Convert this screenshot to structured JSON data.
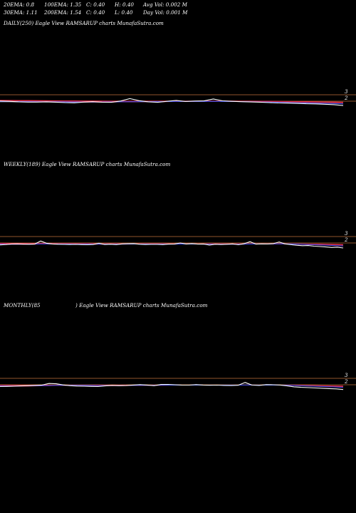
{
  "header": {
    "row1": [
      "20EMA: 0.8",
      "100EMA: 1.35",
      "C: 0.40",
      "H: 0.40",
      "Avg Vol: 0.002  M"
    ],
    "row2": [
      "30EMA: 1.11",
      "200EMA: 1.54",
      "C: 0.40",
      "L: 0.40",
      "Day Vol: 0.001 M"
    ]
  },
  "panels": [
    {
      "label": "DAILY(250) Eagle   View  RAMSARUP charts MunafaSutra.com"
    },
    {
      "label": "WEEKLY(189) Eagle   View  RAMSARUP charts MunafaSutra.com"
    },
    {
      "label": "MONTHLY(85",
      "label2": ") Eagle   View  RAMSARUP charts MunafaSutra.com"
    }
  ],
  "colors": {
    "background": "#000000",
    "price": "#ffffff",
    "level": "#c2703a",
    "ema_red": "#e8304a",
    "ema_blue": "#2a4bf0",
    "ema_white": "#d8d8f0"
  },
  "chart_data": [
    {
      "type": "line",
      "title": "DAILY(250) Eagle   View  RAMSARUP charts MunafaSutra.com",
      "y_ticks": [
        3,
        2
      ],
      "levels": [
        3,
        2
      ],
      "ylim": [
        0.6,
        3.6
      ],
      "x_count": 24,
      "series": [
        {
          "values": [
            2.02,
            1.98,
            1.9,
            1.86,
            1.85,
            1.9,
            1.84,
            1.78,
            1.74,
            1.86,
            1.92,
            1.84,
            1.82,
            2.02,
            2.4,
            2.08,
            1.9,
            1.82,
            1.98,
            2.12,
            1.96,
            2.02,
            2.04,
            2.34,
            2.06,
            1.98,
            1.92,
            1.88,
            1.84,
            1.78,
            1.72,
            1.7,
            1.66,
            1.6,
            1.58,
            1.52,
            1.45,
            1.32
          ]
        },
        {
          "values": [
            1.96,
            1.95,
            1.94,
            1.93,
            1.92,
            1.91,
            1.9,
            1.89,
            1.88,
            1.88,
            1.88,
            1.88,
            1.89,
            1.9,
            1.92,
            1.93,
            1.93,
            1.93,
            1.94,
            1.95,
            1.95,
            1.96,
            1.96,
            1.97,
            1.96,
            1.95,
            1.93,
            1.91,
            1.88,
            1.85,
            1.82,
            1.79,
            1.76,
            1.73,
            1.7,
            1.67,
            1.64,
            1.6
          ]
        },
        {
          "values": [
            2.02,
            2.01,
            1.99,
            1.97,
            1.95,
            1.93,
            1.91,
            1.89,
            1.87,
            1.86,
            1.86,
            1.86,
            1.87,
            1.88,
            1.9,
            1.91,
            1.91,
            1.91,
            1.92,
            1.93,
            1.94,
            1.95,
            1.96,
            1.98,
            1.98,
            1.97,
            1.96,
            1.94,
            1.92,
            1.9,
            1.87,
            1.84,
            1.81,
            1.78,
            1.76,
            1.73,
            1.7,
            1.68
          ]
        },
        {
          "values": [
            2.08,
            2.07,
            2.06,
            2.05,
            2.04,
            2.03,
            2.02,
            2.01,
            2.0,
            1.99,
            1.98,
            1.97,
            1.97,
            1.97,
            1.98,
            1.98,
            1.98,
            1.98,
            1.98,
            1.99,
            1.99,
            2.0,
            2.0,
            2.01,
            2.01,
            2.01,
            2.0,
            1.99,
            1.98,
            1.97,
            1.95,
            1.93,
            1.91,
            1.89,
            1.87,
            1.85,
            1.83,
            1.81
          ]
        },
        {
          "values": [
            2.14,
            2.13,
            2.12,
            2.11,
            2.1,
            2.09,
            2.08,
            2.07,
            2.06,
            2.05,
            2.04,
            2.03,
            2.02,
            2.02,
            2.02,
            2.02,
            2.02,
            2.02,
            2.02,
            2.02,
            2.02,
            2.02,
            2.03,
            2.03,
            2.03,
            2.03,
            2.02,
            2.02,
            2.01,
            2.0,
            1.98,
            1.96,
            1.95,
            1.93,
            1.92,
            1.9,
            1.88,
            1.86
          ]
        },
        {
          "values": [
            1.9,
            1.9,
            1.89,
            1.88,
            1.87,
            1.86,
            1.85,
            1.84,
            1.84,
            1.84,
            1.84,
            1.85,
            1.86,
            1.87,
            1.89,
            1.9,
            1.9,
            1.91,
            1.92,
            1.93,
            1.93,
            1.94,
            1.95,
            1.96,
            1.95,
            1.94,
            1.92,
            1.9,
            1.87,
            1.84,
            1.81,
            1.78,
            1.75,
            1.72,
            1.69,
            1.66,
            1.62,
            1.58
          ]
        }
      ]
    },
    {
      "type": "line",
      "title": "WEEKLY(189) Eagle   View  RAMSARUP charts MunafaSutra.com",
      "y_ticks": [
        3,
        2
      ],
      "levels": [
        3,
        2
      ],
      "ylim": [
        0.6,
        3.6
      ],
      "series": [
        {
          "values": [
            1.7,
            1.76,
            1.84,
            1.86,
            1.82,
            1.8,
            1.84,
            2.3,
            1.95,
            1.84,
            1.8,
            1.78,
            1.76,
            1.78,
            1.74,
            1.72,
            1.76,
            1.96,
            1.76,
            1.8,
            1.74,
            1.86,
            1.88,
            1.9,
            1.8,
            1.76,
            1.78,
            1.78,
            1.74,
            1.82,
            1.84,
            2.0,
            1.84,
            1.9,
            1.82,
            1.84,
            1.68,
            1.8,
            1.76,
            1.8,
            1.86,
            1.72,
            1.9,
            2.2,
            1.82,
            1.86,
            1.84,
            1.9,
            2.16,
            1.86,
            1.74,
            1.64,
            1.58,
            1.6,
            1.5,
            1.44,
            1.38,
            1.3,
            1.34,
            1.22
          ]
        },
        {
          "values": [
            1.8,
            1.8,
            1.81,
            1.81,
            1.82,
            1.82,
            1.83,
            1.84,
            1.84,
            1.84,
            1.84,
            1.83,
            1.83,
            1.82,
            1.82,
            1.82,
            1.82,
            1.82,
            1.82,
            1.82,
            1.82,
            1.82,
            1.83,
            1.83,
            1.83,
            1.83,
            1.82,
            1.82,
            1.82,
            1.82,
            1.82,
            1.83,
            1.83,
            1.83,
            1.83,
            1.82,
            1.81,
            1.81,
            1.81,
            1.81,
            1.81,
            1.81,
            1.82,
            1.83,
            1.84,
            1.84,
            1.85,
            1.86,
            1.86,
            1.86,
            1.84,
            1.82,
            1.79,
            1.76,
            1.73,
            1.7,
            1.66,
            1.62,
            1.58,
            1.54
          ]
        },
        {
          "values": [
            1.88,
            1.88,
            1.88,
            1.88,
            1.88,
            1.88,
            1.89,
            1.89,
            1.89,
            1.88,
            1.88,
            1.88,
            1.87,
            1.87,
            1.87,
            1.86,
            1.86,
            1.86,
            1.86,
            1.86,
            1.86,
            1.86,
            1.86,
            1.86,
            1.86,
            1.86,
            1.86,
            1.85,
            1.85,
            1.85,
            1.85,
            1.85,
            1.85,
            1.85,
            1.85,
            1.85,
            1.84,
            1.84,
            1.84,
            1.84,
            1.84,
            1.84,
            1.84,
            1.85,
            1.85,
            1.85,
            1.86,
            1.86,
            1.86,
            1.86,
            1.85,
            1.84,
            1.82,
            1.8,
            1.78,
            1.76,
            1.74,
            1.72,
            1.7,
            1.68
          ]
        },
        {
          "values": [
            1.94,
            1.94,
            1.94,
            1.94,
            1.94,
            1.93,
            1.93,
            1.93,
            1.93,
            1.93,
            1.92,
            1.92,
            1.92,
            1.91,
            1.91,
            1.91,
            1.91,
            1.9,
            1.9,
            1.9,
            1.9,
            1.9,
            1.9,
            1.9,
            1.9,
            1.89,
            1.89,
            1.89,
            1.89,
            1.89,
            1.89,
            1.89,
            1.89,
            1.89,
            1.88,
            1.88,
            1.88,
            1.88,
            1.88,
            1.88,
            1.88,
            1.88,
            1.88,
            1.88,
            1.88,
            1.88,
            1.88,
            1.88,
            1.88,
            1.88,
            1.87,
            1.87,
            1.86,
            1.85,
            1.84,
            1.83,
            1.81,
            1.8,
            1.78,
            1.76
          ]
        },
        {
          "values": [
            1.76,
            1.76,
            1.77,
            1.77,
            1.78,
            1.78,
            1.8,
            1.82,
            1.82,
            1.82,
            1.81,
            1.8,
            1.8,
            1.79,
            1.79,
            1.79,
            1.8,
            1.81,
            1.8,
            1.8,
            1.8,
            1.81,
            1.81,
            1.82,
            1.82,
            1.81,
            1.81,
            1.81,
            1.8,
            1.81,
            1.81,
            1.82,
            1.82,
            1.82,
            1.82,
            1.81,
            1.8,
            1.8,
            1.8,
            1.8,
            1.8,
            1.8,
            1.81,
            1.83,
            1.83,
            1.83,
            1.84,
            1.85,
            1.86,
            1.85,
            1.83,
            1.8,
            1.77,
            1.74,
            1.71,
            1.68,
            1.64,
            1.6,
            1.56,
            1.52
          ]
        }
      ]
    },
    {
      "type": "line",
      "title": "MONTHLY(85 ) Eagle   View  RAMSARUP charts MunafaSutra.com",
      "y_ticks": [
        3,
        2
      ],
      "levels": [
        3,
        2
      ],
      "ylim": [
        0.6,
        3.6
      ],
      "series": [
        {
          "values": [
            1.72,
            1.74,
            1.78,
            1.82,
            1.86,
            1.9,
            1.96,
            2.2,
            2.16,
            1.98,
            1.86,
            1.8,
            1.78,
            1.74,
            1.72,
            1.82,
            1.9,
            1.86,
            1.88,
            1.96,
            2.02,
            1.96,
            1.86,
            2.04,
            2.06,
            2.0,
            1.94,
            1.94,
            2.02,
            1.96,
            1.92,
            1.94,
            1.9,
            1.88,
            1.92,
            2.36,
            1.94,
            1.9,
            2.02,
            2.0,
            1.96,
            1.82,
            1.68,
            1.6,
            1.56,
            1.5,
            1.46,
            1.4,
            1.36,
            1.26
          ]
        },
        {
          "values": [
            1.8,
            1.8,
            1.81,
            1.82,
            1.83,
            1.85,
            1.86,
            1.88,
            1.9,
            1.91,
            1.91,
            1.9,
            1.9,
            1.89,
            1.88,
            1.88,
            1.88,
            1.88,
            1.89,
            1.9,
            1.91,
            1.92,
            1.92,
            1.93,
            1.94,
            1.94,
            1.94,
            1.94,
            1.95,
            1.95,
            1.95,
            1.95,
            1.95,
            1.94,
            1.94,
            1.96,
            1.96,
            1.95,
            1.95,
            1.95,
            1.94,
            1.92,
            1.89,
            1.85,
            1.81,
            1.77,
            1.73,
            1.69,
            1.65,
            1.6
          ]
        },
        {
          "values": [
            1.86,
            1.86,
            1.87,
            1.87,
            1.88,
            1.88,
            1.89,
            1.9,
            1.91,
            1.91,
            1.91,
            1.91,
            1.91,
            1.9,
            1.9,
            1.9,
            1.9,
            1.9,
            1.91,
            1.91,
            1.92,
            1.92,
            1.92,
            1.93,
            1.93,
            1.94,
            1.94,
            1.94,
            1.94,
            1.95,
            1.95,
            1.95,
            1.95,
            1.95,
            1.95,
            1.96,
            1.96,
            1.96,
            1.96,
            1.96,
            1.95,
            1.94,
            1.92,
            1.9,
            1.87,
            1.84,
            1.81,
            1.78,
            1.75,
            1.72
          ]
        },
        {
          "values": [
            1.92,
            1.92,
            1.92,
            1.92,
            1.92,
            1.93,
            1.93,
            1.93,
            1.93,
            1.93,
            1.93,
            1.93,
            1.93,
            1.93,
            1.93,
            1.93,
            1.93,
            1.93,
            1.93,
            1.93,
            1.94,
            1.94,
            1.94,
            1.94,
            1.94,
            1.94,
            1.95,
            1.95,
            1.95,
            1.95,
            1.95,
            1.95,
            1.95,
            1.95,
            1.95,
            1.96,
            1.96,
            1.96,
            1.96,
            1.96,
            1.95,
            1.95,
            1.94,
            1.92,
            1.9,
            1.88,
            1.86,
            1.84,
            1.82,
            1.8
          ]
        },
        {
          "values": [
            1.74,
            1.75,
            1.76,
            1.77,
            1.79,
            1.81,
            1.83,
            1.86,
            1.88,
            1.89,
            1.89,
            1.88,
            1.87,
            1.86,
            1.85,
            1.85,
            1.86,
            1.86,
            1.87,
            1.88,
            1.89,
            1.9,
            1.9,
            1.91,
            1.92,
            1.93,
            1.93,
            1.93,
            1.94,
            1.94,
            1.94,
            1.94,
            1.94,
            1.93,
            1.93,
            1.95,
            1.95,
            1.94,
            1.94,
            1.94,
            1.93,
            1.91,
            1.88,
            1.84,
            1.8,
            1.76,
            1.72,
            1.68,
            1.64,
            1.58
          ]
        }
      ]
    }
  ]
}
